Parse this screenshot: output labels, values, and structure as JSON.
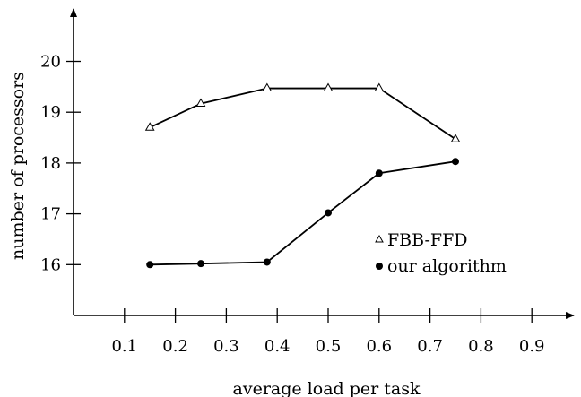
{
  "chart_data": {
    "type": "line",
    "xlabel": "average load per task",
    "ylabel": "number of processors",
    "x_ticks": [
      0.1,
      0.2,
      0.3,
      0.4,
      0.5,
      0.6,
      0.7,
      0.8,
      0.9
    ],
    "x_tick_labels": [
      "0.1",
      "0.2",
      "0.3",
      "0.4",
      "0.5",
      "0.6",
      "0.7",
      "0.8",
      "0.9"
    ],
    "y_ticks": [
      16,
      17,
      18,
      19,
      20
    ],
    "y_tick_labels": [
      "16",
      "17",
      "18",
      "19",
      "20"
    ],
    "xlim": [
      0,
      1.0
    ],
    "ylim": [
      15,
      21.2
    ],
    "grid": false,
    "legend_position": "right",
    "series": [
      {
        "name": "FBB-FFD",
        "marker": "triangle-open",
        "color": "#000000",
        "x": [
          0.15,
          0.25,
          0.38,
          0.5,
          0.6,
          0.75
        ],
        "y": [
          18.7,
          19.17,
          19.47,
          19.47,
          19.47,
          18.47
        ]
      },
      {
        "name": "our algorithm",
        "marker": "circle-filled",
        "color": "#000000",
        "x": [
          0.15,
          0.25,
          0.38,
          0.5,
          0.6,
          0.75
        ],
        "y": [
          16.0,
          16.02,
          16.05,
          17.02,
          17.8,
          18.03
        ]
      }
    ]
  }
}
